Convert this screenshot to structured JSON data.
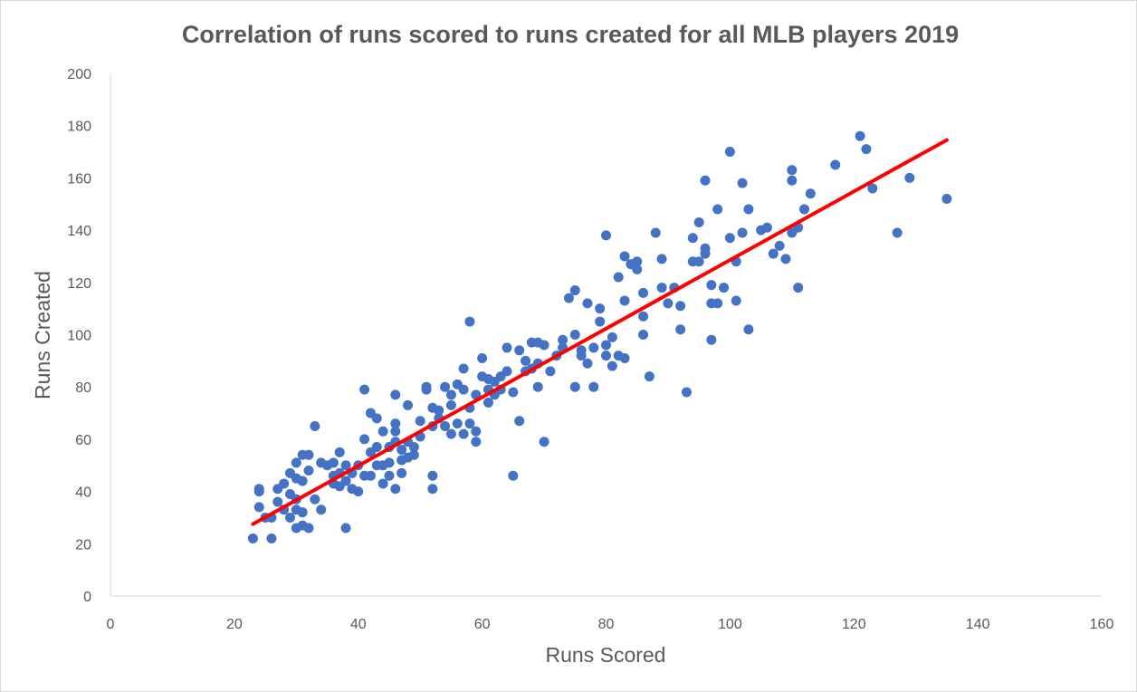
{
  "chart_data": {
    "type": "scatter",
    "title": "Correlation of runs scored to runs created for all MLB players 2019",
    "xlabel": "Runs Scored",
    "ylabel": "Runs Created",
    "xlim": [
      0,
      160
    ],
    "ylim": [
      0,
      200
    ],
    "xticks": [
      "0",
      "20",
      "40",
      "60",
      "80",
      "100",
      "120",
      "140",
      "160"
    ],
    "yticks": [
      "0",
      "20",
      "40",
      "60",
      "80",
      "100",
      "120",
      "140",
      "160",
      "180",
      "200"
    ],
    "grid": false,
    "legend": "none",
    "colors": {
      "points": "#4472C4",
      "trendline": "#FF0000",
      "axis": "#d9d9d9",
      "text": "#595959"
    },
    "trendline": {
      "x": [
        23,
        135
      ],
      "y": [
        27.5,
        174.5
      ]
    },
    "x": [
      23,
      24,
      24,
      24,
      25,
      26,
      26,
      27,
      27,
      28,
      28,
      29,
      29,
      29,
      30,
      30,
      30,
      30,
      30,
      31,
      31,
      31,
      31,
      32,
      32,
      32,
      33,
      33,
      34,
      34,
      35,
      36,
      36,
      36,
      37,
      37,
      37,
      38,
      38,
      38,
      39,
      39,
      40,
      40,
      41,
      41,
      41,
      42,
      42,
      42,
      43,
      43,
      43,
      44,
      44,
      44,
      45,
      45,
      45,
      46,
      46,
      46,
      46,
      46,
      47,
      47,
      47,
      48,
      48,
      48,
      49,
      49,
      50,
      50,
      51,
      51,
      52,
      52,
      52,
      52,
      53,
      53,
      54,
      54,
      55,
      55,
      55,
      56,
      56,
      57,
      57,
      57,
      58,
      58,
      58,
      59,
      59,
      59,
      60,
      60,
      61,
      61,
      61,
      62,
      62,
      63,
      63,
      64,
      64,
      65,
      65,
      66,
      66,
      67,
      67,
      68,
      68,
      69,
      69,
      69,
      70,
      70,
      71,
      72,
      73,
      73,
      74,
      75,
      75,
      75,
      76,
      76,
      77,
      77,
      78,
      78,
      79,
      79,
      80,
      80,
      80,
      81,
      81,
      82,
      82,
      83,
      83,
      83,
      84,
      85,
      85,
      86,
      86,
      86,
      87,
      88,
      89,
      89,
      90,
      91,
      92,
      92,
      93,
      94,
      94,
      95,
      95,
      96,
      96,
      96,
      97,
      97,
      97,
      98,
      98,
      99,
      100,
      100,
      101,
      101,
      102,
      102,
      103,
      103,
      105,
      106,
      107,
      108,
      109,
      110,
      110,
      110,
      111,
      111,
      112,
      113,
      117,
      121,
      122,
      123,
      127,
      129,
      135
    ],
    "y": [
      22,
      41,
      34,
      40,
      30,
      22,
      30,
      36,
      41,
      33,
      43,
      39,
      47,
      30,
      45,
      51,
      33,
      37,
      26,
      44,
      54,
      32,
      27,
      48,
      54,
      26,
      37,
      65,
      51,
      33,
      50,
      46,
      51,
      43,
      55,
      47,
      42,
      44,
      50,
      26,
      41,
      47,
      50,
      40,
      79,
      46,
      60,
      70,
      55,
      46,
      50,
      57,
      68,
      50,
      43,
      63,
      57,
      51,
      46,
      77,
      66,
      63,
      59,
      41,
      52,
      47,
      56,
      73,
      59,
      53,
      57,
      54,
      67,
      61,
      80,
      79,
      72,
      65,
      46,
      41,
      68,
      71,
      80,
      65,
      62,
      77,
      73,
      81,
      66,
      87,
      79,
      62,
      105,
      72,
      66,
      77,
      63,
      59,
      91,
      84,
      83,
      79,
      74,
      82,
      77,
      79,
      84,
      86,
      95,
      46,
      78,
      94,
      67,
      90,
      86,
      97,
      87,
      97,
      89,
      80,
      96,
      59,
      86,
      92,
      95,
      98,
      114,
      80,
      117,
      100,
      94,
      92,
      112,
      89,
      80,
      95,
      105,
      110,
      92,
      138,
      96,
      88,
      99,
      92,
      122,
      130,
      113,
      91,
      127,
      128,
      125,
      116,
      107,
      100,
      84,
      139,
      129,
      118,
      112,
      118,
      102,
      111,
      78,
      128,
      137,
      143,
      128,
      131,
      133,
      159,
      119,
      112,
      98,
      148,
      112,
      118,
      170,
      137,
      128,
      113,
      158,
      139,
      148,
      102,
      140,
      141,
      131,
      134,
      129,
      139,
      163,
      159,
      141,
      118,
      148,
      154,
      165,
      176,
      171,
      156,
      139,
      160,
      152
    ]
  }
}
